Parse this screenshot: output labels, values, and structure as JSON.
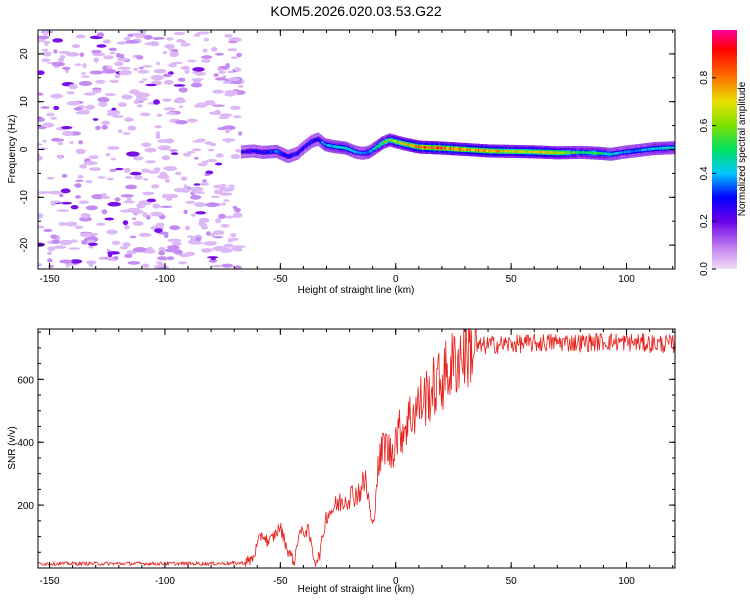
{
  "title": "KOM5.2026.020.03.53.G22",
  "chart_data": [
    {
      "type": "heatmap",
      "title": "KOM5.2026.020.03.53.G22",
      "xlabel": "Height of straight line (km)",
      "ylabel": "Frequency (Hz)",
      "xlim": [
        -155,
        121
      ],
      "ylim": [
        -25,
        25
      ],
      "xticks": [
        -150,
        -100,
        -50,
        0,
        50,
        100
      ],
      "xtick_labels": [
        "-150",
        "-100",
        "-50",
        "0",
        "50",
        "100"
      ],
      "yticks": [
        -20,
        -10,
        0,
        10,
        20
      ],
      "ytick_labels": [
        "-20",
        "-10",
        "0",
        "10",
        "20"
      ],
      "noise_region_km": [
        -155,
        -67
      ],
      "trace": {
        "x": [
          -67,
          -62,
          -58,
          -52,
          -47,
          -43,
          -40,
          -37,
          -34,
          -31,
          -27,
          -22,
          -18,
          -15,
          -12,
          -9,
          -6,
          -3,
          0,
          3,
          6,
          10,
          20,
          30,
          40,
          50,
          60,
          70,
          80,
          88,
          93,
          98,
          105,
          112,
          121
        ],
        "freq": [
          -0.5,
          -0.3,
          -0.6,
          -0.4,
          -1.5,
          -0.8,
          0.5,
          1.6,
          2.2,
          1.0,
          0.6,
          0.3,
          -0.5,
          -0.8,
          -0.6,
          0.4,
          1.4,
          2.0,
          1.6,
          1.2,
          0.9,
          0.5,
          0.3,
          0.0,
          -0.3,
          -0.4,
          -0.5,
          -0.7,
          -0.6,
          -0.8,
          -1.0,
          -0.6,
          -0.2,
          0.2,
          0.4
        ],
        "amplitude": [
          0.25,
          0.3,
          0.3,
          0.35,
          0.3,
          0.3,
          0.3,
          0.3,
          0.3,
          0.4,
          0.45,
          0.45,
          0.4,
          0.35,
          0.4,
          0.5,
          0.55,
          0.6,
          0.65,
          0.7,
          0.75,
          0.85,
          0.9,
          0.8,
          0.8,
          0.7,
          0.75,
          0.7,
          0.5,
          0.55,
          0.45,
          0.4,
          0.4,
          0.45,
          0.45
        ]
      },
      "colorbar": {
        "label": "Normalized spectral amplitude",
        "range": [
          0,
          1
        ],
        "ticks": [
          0.0,
          0.2,
          0.4,
          0.6,
          0.8
        ],
        "tick_labels": [
          "0.0",
          "0.2",
          "0.4",
          "0.6",
          "0.8"
        ]
      }
    },
    {
      "type": "line",
      "xlabel": "Height of straight line (km)",
      "ylabel": "SNR (v/v)",
      "xlim": [
        -155,
        121
      ],
      "ylim": [
        0,
        760
      ],
      "xticks": [
        -150,
        -100,
        -50,
        0,
        50,
        100
      ],
      "xtick_labels": [
        "-150",
        "-100",
        "-50",
        "0",
        "50",
        "100"
      ],
      "yticks": [
        200,
        400,
        600
      ],
      "ytick_labels": [
        "200",
        "400",
        "600"
      ],
      "series": [
        {
          "name": "SNR",
          "color": "#e8201c",
          "x": [
            -155,
            -130,
            -100,
            -80,
            -65,
            -62,
            -58,
            -55,
            -50,
            -47,
            -44,
            -42,
            -38,
            -35,
            -33,
            -30,
            -27,
            -24,
            -20,
            -16,
            -13,
            -10,
            -8,
            -5,
            -2,
            0,
            3,
            6,
            10,
            15,
            20,
            25,
            30,
            35,
            40,
            50,
            60,
            70,
            80,
            90,
            100,
            110,
            121
          ],
          "values": [
            14,
            14,
            14,
            14,
            16,
            30,
            110,
            80,
            130,
            60,
            20,
            110,
            120,
            20,
            40,
            170,
            190,
            210,
            230,
            240,
            280,
            120,
            300,
            400,
            360,
            420,
            440,
            480,
            520,
            560,
            600,
            650,
            690,
            700,
            710,
            712,
            715,
            718,
            716,
            720,
            718,
            714,
            712
          ]
        }
      ]
    }
  ],
  "colors": {
    "line": "#e8201c",
    "background": "#ffffff",
    "axes": "#000000"
  }
}
